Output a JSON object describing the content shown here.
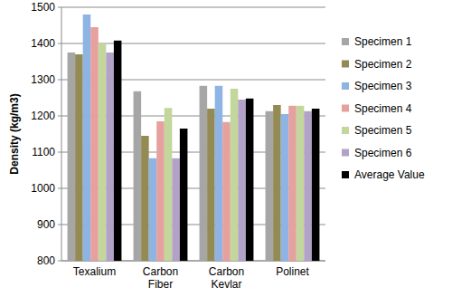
{
  "chart_data": {
    "type": "bar",
    "y_label": "Density (kg/m3)",
    "categories": [
      "Texalium",
      "Carbon Fiber",
      "Carbon Kevlar",
      "Polinet"
    ],
    "series": [
      {
        "name": "Specimen 1",
        "color": "#a6a6a6",
        "values": [
          1375,
          1268,
          1283,
          1213
        ]
      },
      {
        "name": "Specimen 2",
        "color": "#948a54",
        "values": [
          1370,
          1145,
          1220,
          1230
        ]
      },
      {
        "name": "Specimen 3",
        "color": "#8db4e2",
        "values": [
          1480,
          1083,
          1283,
          1205
        ]
      },
      {
        "name": "Specimen 4",
        "color": "#e6a09e",
        "values": [
          1445,
          1185,
          1183,
          1228
        ]
      },
      {
        "name": "Specimen 5",
        "color": "#c3d69b",
        "values": [
          1400,
          1222,
          1275,
          1228
        ]
      },
      {
        "name": "Specimen 6",
        "color": "#b3a2c7",
        "values": [
          1375,
          1083,
          1245,
          1213
        ]
      },
      {
        "name": "Average Value",
        "color": "#000000",
        "values": [
          1408,
          1165,
          1248,
          1220
        ]
      }
    ],
    "ylim": [
      800,
      1500
    ],
    "yticks": [
      800,
      900,
      1000,
      1100,
      1200,
      1300,
      1400,
      1500
    ],
    "grid": true,
    "legend": "right"
  }
}
